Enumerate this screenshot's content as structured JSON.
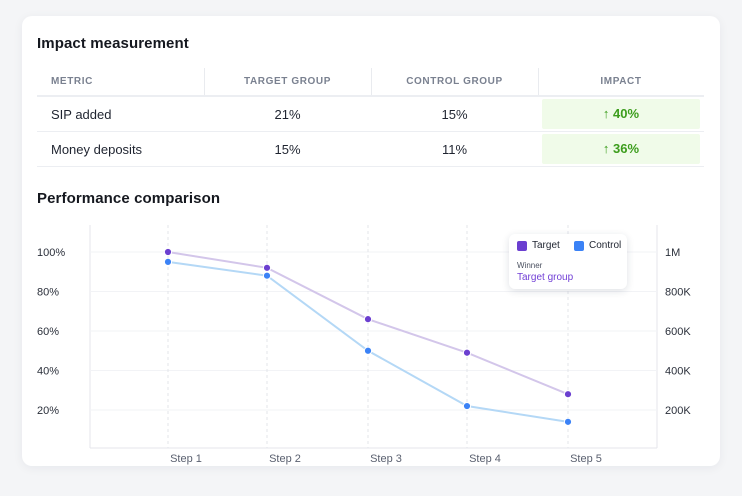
{
  "impact": {
    "title": "Impact measurement",
    "columns": [
      "METRIC",
      "TARGET GROUP",
      "CONTROL GROUP",
      "IMPACT"
    ],
    "rows": [
      {
        "metric": "SIP added",
        "target": "21%",
        "control": "15%",
        "impact": "↑ 40%"
      },
      {
        "metric": "Money deposits",
        "target": "15%",
        "control": "11%",
        "impact": "↑ 36%"
      }
    ],
    "impact_color": "#3c9d1c",
    "impact_bg": "#f0fbe9"
  },
  "performance": {
    "title": "Performance comparison"
  },
  "legend": {
    "target_label": "Target",
    "control_label": "Control",
    "winner_label": "Winner",
    "winner_value": "Target group"
  },
  "chart_data": {
    "type": "line",
    "x": [
      "Step 1",
      "Step 2",
      "Step 3",
      "Step 4",
      "Step 5"
    ],
    "series": [
      {
        "name": "Target",
        "values": [
          100,
          92,
          66,
          49,
          28
        ],
        "color": "#6b3fd0",
        "line_color": "#d3c6ea"
      },
      {
        "name": "Control",
        "values": [
          95,
          88,
          50,
          22,
          14
        ],
        "color": "#3b82f6",
        "line_color": "#b4d8f6"
      }
    ],
    "y_left": {
      "ticks": [
        100,
        80,
        60,
        40,
        20
      ],
      "labels": [
        "100%",
        "80%",
        "60%",
        "40%",
        "20%"
      ],
      "ylim": [
        0,
        100
      ]
    },
    "y_right": {
      "labels": [
        "1M",
        "800K",
        "600K",
        "400K",
        "200K"
      ]
    },
    "grid": "vertical dashed",
    "legend_position": "top-right"
  }
}
